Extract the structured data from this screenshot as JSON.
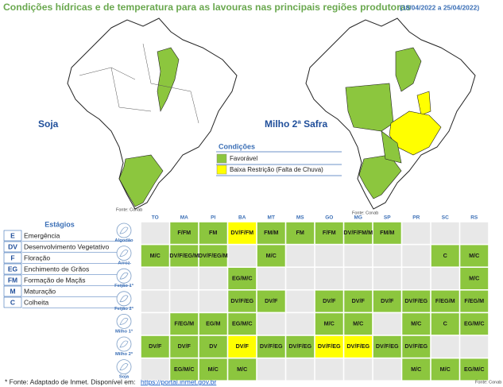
{
  "header": {
    "title": "Condições hídricas e de temperatura para as lavouras nas principais regiões produtoras",
    "period": "(18/04/2022 a 25/04/2022)"
  },
  "maps": [
    {
      "label": "Soja",
      "source": "Fonte: Conab"
    },
    {
      "label": "Milho 2ª Safra",
      "source": "Fonte: Conab"
    }
  ],
  "legend": {
    "title": "Condições",
    "items": [
      {
        "label": "Favorável",
        "color": "#8cc63e"
      },
      {
        "label": "Baixa Restrição (Falta de Chuva)",
        "color": "#ffff00"
      }
    ]
  },
  "stages": {
    "title": "Estágios",
    "items": [
      {
        "code": "E",
        "name": "Emergência"
      },
      {
        "code": "DV",
        "name": "Desenvolvimento Vegetativo"
      },
      {
        "code": "F",
        "name": "Floração"
      },
      {
        "code": "EG",
        "name": "Enchimento de Grãos"
      },
      {
        "code": "FM",
        "name": "Formação de Maçãs"
      },
      {
        "code": "M",
        "name": "Maturação"
      },
      {
        "code": "C",
        "name": "Colheita"
      }
    ]
  },
  "table": {
    "columns": [
      "TO",
      "MA",
      "PI",
      "BA",
      "MT",
      "MS",
      "GO",
      "MG",
      "SP",
      "PR",
      "SC",
      "RS"
    ],
    "rows": [
      {
        "crop": "Algodão",
        "cells": [
          null,
          {
            "text": "F/FM",
            "color": "#8cc63e"
          },
          {
            "text": "FM",
            "color": "#8cc63e"
          },
          {
            "text": "DV/F/FM",
            "color": "#ffff00"
          },
          {
            "text": "FM/M",
            "color": "#8cc63e"
          },
          {
            "text": "FM",
            "color": "#8cc63e"
          },
          {
            "text": "F/FM",
            "color": "#8cc63e"
          },
          {
            "text": "DV/F/FM/M",
            "color": "#8cc63e"
          },
          {
            "text": "FM/M",
            "color": "#8cc63e"
          },
          null,
          null,
          null
        ]
      },
      {
        "crop": "Arroz",
        "cells": [
          {
            "text": "M/C",
            "color": "#8cc63e"
          },
          {
            "text": "DV/F/EG/M",
            "color": "#8cc63e"
          },
          {
            "text": "DV/F/EG/M",
            "color": "#8cc63e"
          },
          null,
          {
            "text": "M/C",
            "color": "#8cc63e"
          },
          null,
          null,
          null,
          null,
          null,
          {
            "text": "C",
            "color": "#8cc63e"
          },
          {
            "text": "M/C",
            "color": "#8cc63e"
          }
        ]
      },
      {
        "crop": "Feijão 1ª",
        "cells": [
          null,
          null,
          null,
          {
            "text": "EG/M/C",
            "color": "#8cc63e"
          },
          null,
          null,
          null,
          null,
          null,
          null,
          null,
          {
            "text": "M/C",
            "color": "#8cc63e"
          }
        ]
      },
      {
        "crop": "Feijão 2ª",
        "cells": [
          null,
          null,
          null,
          {
            "text": "DV/F/EG",
            "color": "#8cc63e"
          },
          {
            "text": "DV/F",
            "color": "#8cc63e"
          },
          null,
          {
            "text": "DV/F",
            "color": "#8cc63e"
          },
          {
            "text": "DV/F",
            "color": "#8cc63e"
          },
          {
            "text": "DV/F",
            "color": "#8cc63e"
          },
          {
            "text": "DV/F/EG",
            "color": "#8cc63e"
          },
          {
            "text": "F/EG/M",
            "color": "#8cc63e"
          },
          {
            "text": "F/EG/M",
            "color": "#8cc63e"
          }
        ]
      },
      {
        "crop": "Milho 1ª",
        "cells": [
          null,
          {
            "text": "F/EG/M",
            "color": "#8cc63e"
          },
          {
            "text": "EG/M",
            "color": "#8cc63e"
          },
          {
            "text": "EG/M/C",
            "color": "#8cc63e"
          },
          null,
          null,
          {
            "text": "M/C",
            "color": "#8cc63e"
          },
          {
            "text": "M/C",
            "color": "#8cc63e"
          },
          null,
          {
            "text": "M/C",
            "color": "#8cc63e"
          },
          {
            "text": "C",
            "color": "#8cc63e"
          },
          {
            "text": "EG/M/C",
            "color": "#8cc63e"
          }
        ]
      },
      {
        "crop": "Milho 2ª",
        "cells": [
          {
            "text": "DV/F",
            "color": "#8cc63e"
          },
          {
            "text": "DV/F",
            "color": "#8cc63e"
          },
          {
            "text": "DV",
            "color": "#8cc63e"
          },
          {
            "text": "DV/F",
            "color": "#ffff00"
          },
          {
            "text": "DV/F/EG",
            "color": "#8cc63e"
          },
          {
            "text": "DV/F/EG",
            "color": "#8cc63e"
          },
          {
            "text": "DV/F/EG",
            "color": "#ffff00"
          },
          {
            "text": "DV/F/EG",
            "color": "#ffff00"
          },
          {
            "text": "DV/F/EG",
            "color": "#8cc63e"
          },
          {
            "text": "DV/F/EG",
            "color": "#8cc63e"
          },
          null,
          null
        ]
      },
      {
        "crop": "Soja",
        "cells": [
          null,
          {
            "text": "EG/M/C",
            "color": "#8cc63e"
          },
          {
            "text": "M/C",
            "color": "#8cc63e"
          },
          {
            "text": "M/C",
            "color": "#8cc63e"
          },
          null,
          null,
          null,
          null,
          null,
          {
            "text": "M/C",
            "color": "#8cc63e"
          },
          {
            "text": "M/C",
            "color": "#8cc63e"
          },
          {
            "text": "EG/M/C",
            "color": "#8cc63e"
          }
        ]
      }
    ],
    "source": "Fonte: Conab"
  },
  "footer": {
    "text": "* Fonte: Adaptado de Inmet. Disponível em:",
    "link": "https://portal.inmet.gov.br"
  }
}
